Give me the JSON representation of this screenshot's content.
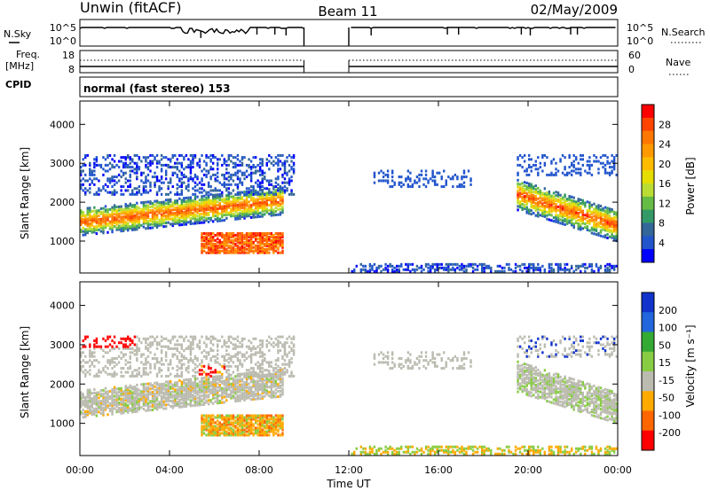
{
  "header": {
    "station": "Unwin (fitACF)",
    "beam": "Beam 11",
    "date": "02/May/2009"
  },
  "noise_panel": {
    "left_label": "N.Sky",
    "left_ticks": [
      "10^5",
      "10^0"
    ],
    "right_label": "N.Search",
    "right_ticks": [
      "10^5",
      "10^0"
    ]
  },
  "freq_panel": {
    "left_label_line1": "Freq.",
    "left_label_line2": "[MHz]",
    "left_ticks": [
      "18",
      "8"
    ],
    "right_label": "Nave",
    "right_ticks": [
      "60",
      "0"
    ]
  },
  "cpid": {
    "label": "CPID",
    "value": "normal (fast stereo) 153"
  },
  "chart_data": [
    {
      "type": "heatmap",
      "panel": "power",
      "ylabel": "Slant Range [km]",
      "yticks": [
        "4000",
        "3000",
        "2000",
        "1000"
      ],
      "ylim": [
        180,
        4600
      ],
      "colorbar_label": "Power [dB]",
      "colorbar_ticks": [
        "28",
        "24",
        "20",
        "16",
        "12",
        "8",
        "4"
      ],
      "colorbar_colors": [
        "#ff0000",
        "#ff4400",
        "#ff7700",
        "#ff9900",
        "#ffbb00",
        "#e6dd00",
        "#bbdd33",
        "#66bb44",
        "#339966",
        "#336699",
        "#2255cc",
        "#0000ff"
      ],
      "time_gap_hours": [
        10,
        12
      ],
      "echo_regions": [
        {
          "start_hour": 0.0,
          "end_hour": 9.0,
          "center_km": 1500,
          "width_km": 600,
          "level": "high"
        },
        {
          "start_hour": 5.3,
          "end_hour": 9.0,
          "center_km": 900,
          "width_km": 400,
          "level": "high"
        },
        {
          "start_hour": 0.0,
          "end_hour": 9.5,
          "center_km": 2600,
          "width_km": 700,
          "level": "low"
        },
        {
          "start_hour": 19.5,
          "end_hour": 24.0,
          "center_km": 1600,
          "width_km": 800,
          "level": "high"
        },
        {
          "start_hour": 12.0,
          "end_hour": 24.0,
          "center_km": 300,
          "width_km": 200,
          "level": "low"
        }
      ]
    },
    {
      "type": "heatmap",
      "panel": "velocity",
      "ylabel": "Slant Range [km]",
      "yticks": [
        "4000",
        "3000",
        "2000",
        "1000"
      ],
      "ylim": [
        180,
        4600
      ],
      "xlabel": "Time UT",
      "xticks": [
        "00:00",
        "04:00",
        "08:00",
        "12:00",
        "16:00",
        "20:00",
        "00:00"
      ],
      "xlim": [
        0,
        24
      ],
      "colorbar_label": "Velocity [m s⁻¹]",
      "colorbar_ticks": [
        "200",
        "100",
        "50",
        "15",
        "-15",
        "-50",
        "-100",
        "-200"
      ],
      "colorbar_colors": [
        "#1133cc",
        "#2266dd",
        "#33aa33",
        "#88cc44",
        "#bbbbb0",
        "#ffaa00",
        "#ff6600",
        "#ff0000"
      ],
      "time_gap_hours": [
        10,
        12
      ]
    }
  ]
}
